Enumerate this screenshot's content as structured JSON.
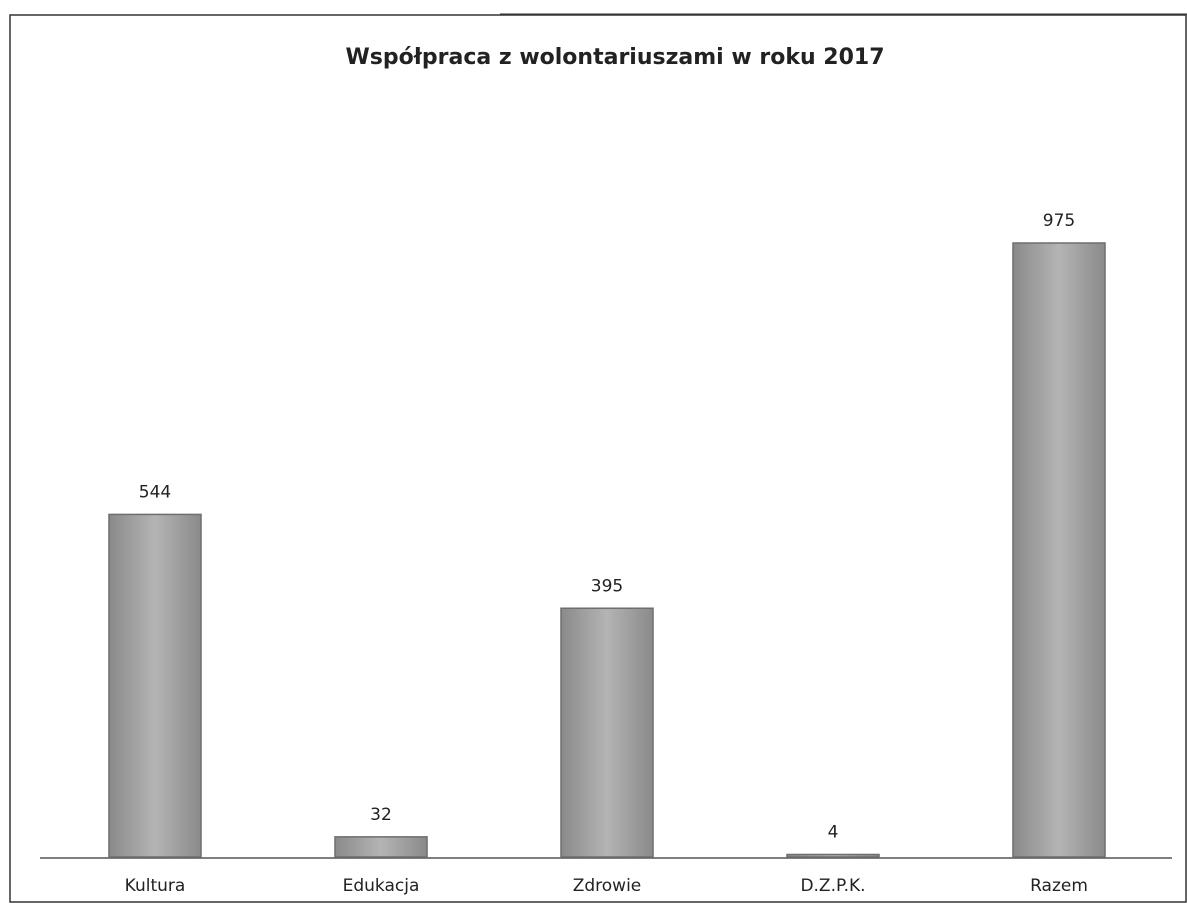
{
  "chart_data": {
    "type": "bar",
    "title": "Współpraca z wolontariuszami w roku 2017",
    "categories": [
      "Kultura",
      "Edukacja",
      "Zdrowie",
      "D.Z.P.K.",
      "Razem"
    ],
    "values": [
      544,
      32,
      395,
      4,
      975
    ],
    "color": "#a3a3a3"
  }
}
